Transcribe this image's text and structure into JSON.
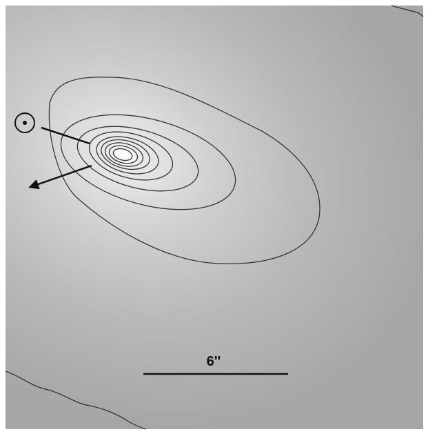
{
  "scale_bar": {
    "label": "6''"
  }
}
